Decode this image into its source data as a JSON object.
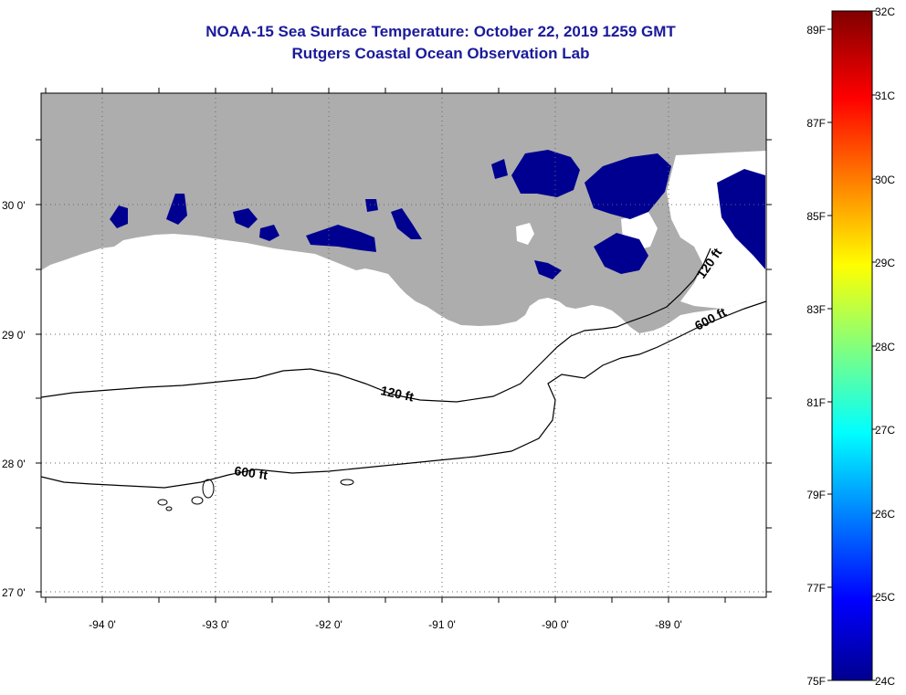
{
  "title": {
    "line1": "NOAA-15 Sea Surface Temperature:  October 22, 2019 1259 GMT",
    "line2": "Rutgers Coastal Ocean Observation Lab"
  },
  "map": {
    "lon_labels": [
      "-94 0'",
      "-93 0'",
      "-92 0'",
      "-91 0'",
      "-90 0'",
      "-89 0'"
    ],
    "lat_labels": [
      "30 0'",
      "29 0'",
      "28 0'",
      "27 0'"
    ],
    "contour_labels": [
      "120 ft",
      "600 ft",
      "600 ft",
      "120 ft"
    ],
    "colors": {
      "land": "#adadad",
      "cloud_cold": "#000090",
      "ocean": "#ffffff",
      "contour": "#000000"
    }
  },
  "colorbar": {
    "fahrenheit_labels": [
      "89F",
      "87F",
      "85F",
      "83F",
      "81F",
      "79F",
      "77F",
      "75F"
    ],
    "celsius_labels": [
      "32C",
      "31C",
      "30C",
      "29C",
      "28C",
      "27C",
      "26C",
      "25C",
      "24C"
    ],
    "range_c": [
      24,
      32
    ]
  }
}
